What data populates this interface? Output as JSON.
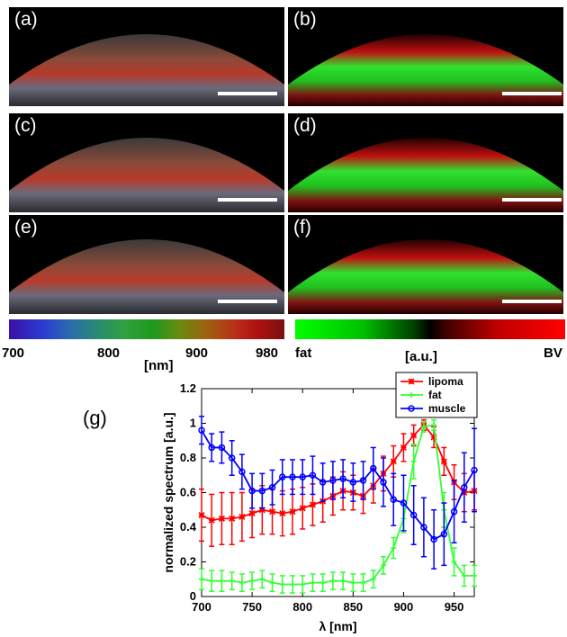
{
  "panels": [
    {
      "label": "(a)",
      "kind": "rgb"
    },
    {
      "label": "(b)",
      "kind": "fatbv"
    },
    {
      "label": "(c)",
      "kind": "rgb"
    },
    {
      "label": "(d)",
      "kind": "fatbv"
    },
    {
      "label": "(e)",
      "kind": "rgb"
    },
    {
      "label": "(f)",
      "kind": "fatbv"
    }
  ],
  "colorbar_wavelength": {
    "ticks": [
      "700",
      "800",
      "900",
      "980"
    ],
    "unit": "[nm]"
  },
  "colorbar_fat_bv": {
    "left": "fat",
    "right": "BV",
    "unit": "[a.u.]",
    "colors": [
      "#00ff00",
      "#000000",
      "#ff0000"
    ]
  },
  "chart_label": "(g)",
  "chart_data": {
    "type": "line",
    "xlabel": "λ [nm]",
    "ylabel": "normalized spectrum [a.u.]",
    "xlim": [
      700,
      970
    ],
    "ylim": [
      0,
      1.2
    ],
    "xticks": [
      700,
      750,
      800,
      850,
      900,
      950
    ],
    "yticks": [
      0,
      0.2,
      0.4,
      0.6,
      0.8,
      1,
      1.2
    ],
    "legend_position": "top-right",
    "x": [
      700,
      710,
      720,
      730,
      740,
      750,
      760,
      770,
      780,
      790,
      800,
      810,
      820,
      830,
      840,
      850,
      860,
      870,
      880,
      890,
      900,
      910,
      920,
      930,
      940,
      950,
      960,
      970
    ],
    "series": [
      {
        "name": "lipoma",
        "color": "#ff0000",
        "marker": "x",
        "values": [
          0.47,
          0.44,
          0.45,
          0.45,
          0.46,
          0.48,
          0.5,
          0.49,
          0.48,
          0.49,
          0.51,
          0.53,
          0.55,
          0.58,
          0.61,
          0.6,
          0.58,
          0.64,
          0.71,
          0.78,
          0.86,
          0.93,
          0.99,
          0.92,
          0.78,
          0.66,
          0.6,
          0.61
        ],
        "err": [
          0.15,
          0.15,
          0.15,
          0.15,
          0.14,
          0.14,
          0.14,
          0.13,
          0.13,
          0.13,
          0.12,
          0.12,
          0.12,
          0.11,
          0.11,
          0.1,
          0.1,
          0.1,
          0.1,
          0.09,
          0.08,
          0.06,
          0.03,
          0.06,
          0.08,
          0.1,
          0.11,
          0.11
        ]
      },
      {
        "name": "fat",
        "color": "#33ff33",
        "marker": "+",
        "values": [
          0.1,
          0.09,
          0.09,
          0.09,
          0.08,
          0.09,
          0.1,
          0.08,
          0.07,
          0.07,
          0.07,
          0.08,
          0.08,
          0.09,
          0.09,
          0.08,
          0.08,
          0.1,
          0.18,
          0.28,
          0.45,
          0.78,
          0.98,
          0.99,
          0.5,
          0.2,
          0.12,
          0.12
        ],
        "err": [
          0.06,
          0.06,
          0.06,
          0.05,
          0.05,
          0.05,
          0.05,
          0.05,
          0.05,
          0.05,
          0.05,
          0.05,
          0.05,
          0.05,
          0.05,
          0.05,
          0.05,
          0.05,
          0.05,
          0.06,
          0.08,
          0.1,
          0.03,
          0.03,
          0.1,
          0.08,
          0.06,
          0.06
        ]
      },
      {
        "name": "muscle",
        "color": "#0000ff",
        "marker": "o",
        "values": [
          0.96,
          0.86,
          0.86,
          0.8,
          0.72,
          0.61,
          0.61,
          0.63,
          0.69,
          0.69,
          0.69,
          0.7,
          0.66,
          0.67,
          0.68,
          0.66,
          0.67,
          0.74,
          0.66,
          0.56,
          0.54,
          0.47,
          0.4,
          0.33,
          0.36,
          0.49,
          0.63,
          0.73
        ],
        "err": [
          0.08,
          0.08,
          0.09,
          0.1,
          0.1,
          0.1,
          0.1,
          0.1,
          0.1,
          0.1,
          0.1,
          0.11,
          0.11,
          0.11,
          0.11,
          0.11,
          0.11,
          0.12,
          0.14,
          0.15,
          0.16,
          0.17,
          0.17,
          0.17,
          0.18,
          0.18,
          0.2,
          0.24
        ]
      }
    ]
  }
}
